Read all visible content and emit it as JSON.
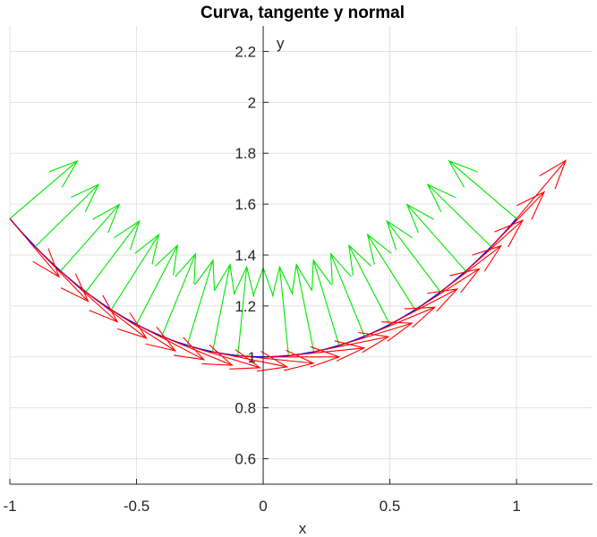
{
  "chart_data": {
    "type": "line",
    "title": "Curva, tangente y normal",
    "xlabel": "x",
    "ylabel": "y",
    "xlim": [
      -1,
      1.3
    ],
    "ylim": [
      0.5,
      2.3
    ],
    "xticks": [
      -1,
      -0.5,
      0,
      0.5,
      1
    ],
    "xtick_labels": [
      "-1",
      "-0.5",
      "0",
      "0.5",
      "1"
    ],
    "yticks": [
      0.6,
      0.8,
      1,
      1.2,
      1.4,
      1.6,
      1.8,
      2,
      2.2
    ],
    "ytick_labels": [
      "0.6",
      "0.8",
      "1",
      "1.2",
      "1.4",
      "1.6",
      "1.8",
      "2",
      "2.2"
    ],
    "grid": true,
    "axes_location": "origin",
    "curve_equation": "y = cosh(x)",
    "curve_x_range": [
      -1,
      1
    ],
    "sample_x": [
      -1,
      -0.9,
      -0.8,
      -0.7,
      -0.6,
      -0.5,
      -0.4,
      -0.3,
      -0.2,
      -0.1,
      0,
      0.1,
      0.2,
      0.3,
      0.4,
      0.5,
      0.6,
      0.7,
      0.8,
      0.9,
      1
    ],
    "sample_y": [
      1.543,
      1.433,
      1.337,
      1.255,
      1.185,
      1.128,
      1.081,
      1.045,
      1.02,
      1.005,
      1.0,
      1.005,
      1.02,
      1.045,
      1.081,
      1.128,
      1.185,
      1.255,
      1.337,
      1.433,
      1.543
    ],
    "series": [
      {
        "kind": "curve",
        "color": "#0000ff"
      },
      {
        "kind": "tangent-vectors",
        "color": "#ff0000",
        "vector_length": 0.3
      },
      {
        "kind": "normal-vectors",
        "color": "#00e600",
        "vector_length": 0.35
      }
    ]
  }
}
